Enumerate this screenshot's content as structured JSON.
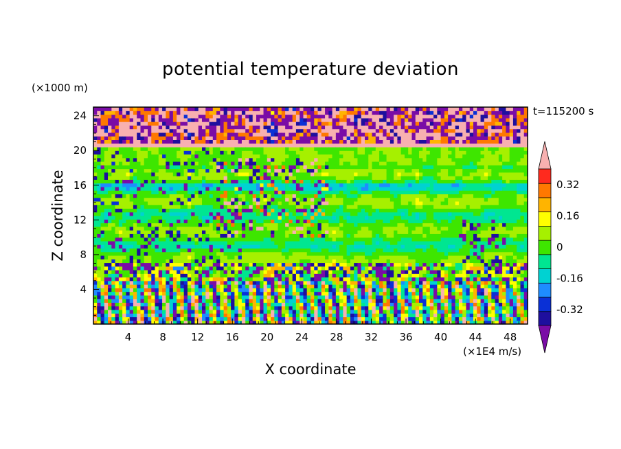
{
  "chart_data": {
    "type": "heatmap",
    "title": "potential temperature deviation",
    "xlabel": "X coordinate",
    "ylabel": "Z coordinate",
    "x_unit": "(×1E4 m/s)",
    "y_unit": "(×1000 m)",
    "time_label": "t=115200 s",
    "xlim": [
      0,
      50
    ],
    "ylim": [
      0,
      25
    ],
    "xticks": [
      4,
      8,
      12,
      16,
      20,
      24,
      28,
      32,
      36,
      40,
      44,
      48
    ],
    "yticks": [
      4,
      8,
      12,
      16,
      20,
      24
    ],
    "colorbar": {
      "levels": [
        -0.4,
        -0.32,
        -0.24,
        -0.16,
        -0.08,
        0,
        0.08,
        0.16,
        0.24,
        0.32,
        0.4
      ],
      "tick_labels": [
        "0.32",
        "0.16",
        "0",
        "-0.16",
        "-0.32"
      ],
      "tick_values": [
        0.32,
        0.16,
        0,
        -0.16,
        -0.32
      ],
      "colors": [
        "#7a0ca6",
        "#1e0f9e",
        "#0a30d6",
        "#1e8cff",
        "#00d2d2",
        "#00e691",
        "#3ee600",
        "#a6f000",
        "#ffff00",
        "#ffb400",
        "#ff7800",
        "#ff2a1e",
        "#f8b0b0"
      ],
      "extend": "both"
    }
  }
}
